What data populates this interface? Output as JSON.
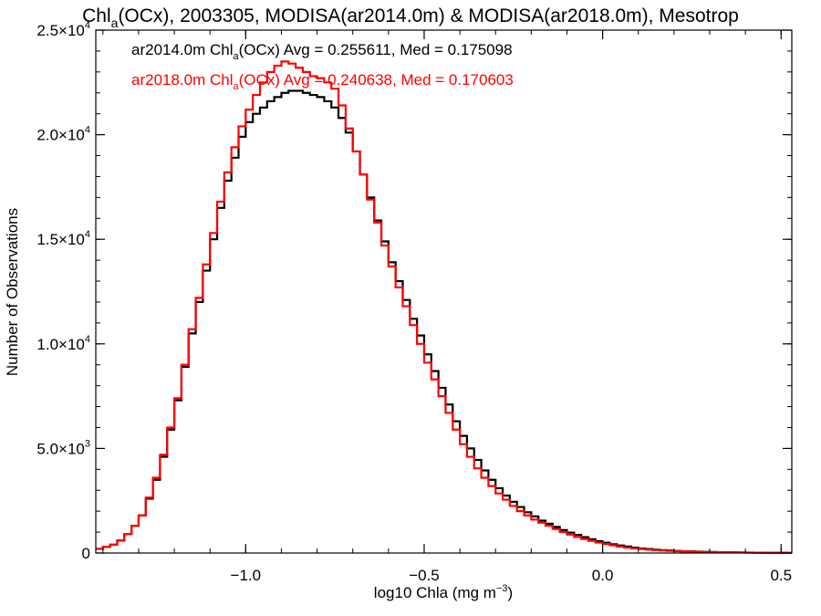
{
  "title": {
    "pre": "Chl",
    "sub": "a",
    "post": "(OCx), 2003305, MODISA(ar2014.0m) & MODISA(ar2018.0m), Mesotrop"
  },
  "xaxis": {
    "label_pre": "log10 Chla (mg m",
    "label_sup": "−3",
    "label_post": ")",
    "ticks": [
      {
        "value": -1.0,
        "label": "−1.0"
      },
      {
        "value": -0.5,
        "label": "−0.5"
      },
      {
        "value": 0.0,
        "label": "0.0"
      },
      {
        "value": 0.5,
        "label": "0.5"
      }
    ]
  },
  "yaxis": {
    "label": "Number of Observations",
    "ticks": [
      {
        "value": 0,
        "mant": "0",
        "exp": ""
      },
      {
        "value": 5000,
        "mant": "5.0×10",
        "exp": "3"
      },
      {
        "value": 10000,
        "mant": "1.0×10",
        "exp": "4"
      },
      {
        "value": 15000,
        "mant": "1.5×10",
        "exp": "4"
      },
      {
        "value": 20000,
        "mant": "2.0×10",
        "exp": "4"
      },
      {
        "value": 25000,
        "mant": "2.5×10",
        "exp": "4"
      }
    ]
  },
  "legend": [
    {
      "pre": "ar2014.0m Chl",
      "sub": "a",
      "post": "(OCx) Avg = 0.255611, Med = 0.175098",
      "color": "#000000"
    },
    {
      "pre": "ar2018.0m Chl",
      "sub": "a",
      "post": "(OCx) Avg = 0.240638, Med = 0.170603",
      "color": "#ff0000"
    }
  ],
  "chart_data": {
    "type": "line",
    "step": true,
    "xlim": [
      -1.42,
      0.53
    ],
    "ylim": [
      0,
      25000
    ],
    "grid": false,
    "legend_position": "top-left",
    "series": [
      {
        "name": "ar2014.0m",
        "color": "#000000",
        "x": [
          -1.42,
          -1.4,
          -1.38,
          -1.36,
          -1.34,
          -1.32,
          -1.3,
          -1.28,
          -1.26,
          -1.24,
          -1.22,
          -1.2,
          -1.18,
          -1.16,
          -1.14,
          -1.12,
          -1.1,
          -1.08,
          -1.06,
          -1.04,
          -1.02,
          -1.0,
          -0.98,
          -0.96,
          -0.94,
          -0.92,
          -0.9,
          -0.88,
          -0.86,
          -0.84,
          -0.82,
          -0.8,
          -0.78,
          -0.76,
          -0.74,
          -0.72,
          -0.7,
          -0.68,
          -0.66,
          -0.64,
          -0.62,
          -0.6,
          -0.58,
          -0.56,
          -0.54,
          -0.52,
          -0.5,
          -0.48,
          -0.46,
          -0.44,
          -0.42,
          -0.4,
          -0.38,
          -0.36,
          -0.34,
          -0.32,
          -0.3,
          -0.28,
          -0.26,
          -0.24,
          -0.22,
          -0.2,
          -0.18,
          -0.16,
          -0.14,
          -0.12,
          -0.1,
          -0.08,
          -0.06,
          -0.04,
          -0.02,
          0.0,
          0.02,
          0.04,
          0.06,
          0.08,
          0.1,
          0.12,
          0.14,
          0.16,
          0.18,
          0.2,
          0.22,
          0.24,
          0.26,
          0.28,
          0.3,
          0.32,
          0.34,
          0.36,
          0.38,
          0.4,
          0.42,
          0.44,
          0.46,
          0.48,
          0.5,
          0.52
        ],
        "y": [
          200,
          300,
          400,
          600,
          900,
          1300,
          1800,
          2600,
          3500,
          4600,
          5900,
          7300,
          8900,
          10500,
          12000,
          13500,
          15000,
          16500,
          17800,
          18900,
          19900,
          20600,
          21000,
          21300,
          21600,
          21800,
          22000,
          22100,
          22100,
          22000,
          21900,
          21800,
          21600,
          21300,
          20800,
          20100,
          19200,
          18100,
          17000,
          15900,
          14900,
          13900,
          13000,
          12100,
          11200,
          10400,
          9500,
          8700,
          7900,
          7100,
          6300,
          5600,
          5000,
          4450,
          3950,
          3500,
          3100,
          2750,
          2450,
          2200,
          1950,
          1750,
          1550,
          1400,
          1250,
          1100,
          980,
          870,
          760,
          660,
          570,
          490,
          420,
          360,
          310,
          260,
          220,
          190,
          160,
          140,
          120,
          100,
          85,
          75,
          65,
          55,
          48,
          42,
          37,
          32,
          28,
          24,
          20,
          17,
          14,
          12,
          10,
          8
        ]
      },
      {
        "name": "ar2018.0m",
        "color": "#ff0000",
        "x": [
          -1.42,
          -1.4,
          -1.38,
          -1.36,
          -1.34,
          -1.32,
          -1.3,
          -1.28,
          -1.26,
          -1.24,
          -1.22,
          -1.2,
          -1.18,
          -1.16,
          -1.14,
          -1.12,
          -1.1,
          -1.08,
          -1.06,
          -1.04,
          -1.02,
          -1.0,
          -0.98,
          -0.96,
          -0.94,
          -0.92,
          -0.9,
          -0.88,
          -0.86,
          -0.84,
          -0.82,
          -0.8,
          -0.78,
          -0.76,
          -0.74,
          -0.72,
          -0.7,
          -0.68,
          -0.66,
          -0.64,
          -0.62,
          -0.6,
          -0.58,
          -0.56,
          -0.54,
          -0.52,
          -0.5,
          -0.48,
          -0.46,
          -0.44,
          -0.42,
          -0.4,
          -0.38,
          -0.36,
          -0.34,
          -0.32,
          -0.3,
          -0.28,
          -0.26,
          -0.24,
          -0.22,
          -0.2,
          -0.18,
          -0.16,
          -0.14,
          -0.12,
          -0.1,
          -0.08,
          -0.06,
          -0.04,
          -0.02,
          0.0,
          0.02,
          0.04,
          0.06,
          0.08,
          0.1,
          0.12,
          0.14,
          0.16,
          0.18,
          0.2,
          0.22,
          0.24,
          0.26,
          0.28,
          0.3,
          0.32,
          0.34,
          0.36,
          0.38,
          0.4,
          0.42,
          0.44,
          0.46,
          0.48,
          0.5,
          0.52
        ],
        "y": [
          200,
          300,
          400,
          600,
          900,
          1300,
          1800,
          2650,
          3600,
          4700,
          6000,
          7400,
          9000,
          10700,
          12200,
          13800,
          15300,
          16800,
          18200,
          19400,
          20400,
          21200,
          21900,
          22500,
          23000,
          23300,
          23500,
          23400,
          23200,
          23000,
          22800,
          22700,
          22500,
          22200,
          21400,
          20300,
          19200,
          18100,
          16900,
          15800,
          14700,
          13700,
          12700,
          11800,
          10900,
          10000,
          9100,
          8300,
          7500,
          6700,
          5900,
          5200,
          4600,
          4050,
          3600,
          3200,
          2850,
          2550,
          2250,
          2000,
          1800,
          1600,
          1450,
          1300,
          1150,
          1000,
          880,
          770,
          670,
          580,
          500,
          430,
          370,
          310,
          260,
          220,
          190,
          160,
          140,
          120,
          100,
          85,
          75,
          65,
          55,
          48,
          42,
          37,
          32,
          28,
          24,
          20,
          17,
          14,
          12,
          10,
          8,
          6
        ]
      }
    ]
  }
}
